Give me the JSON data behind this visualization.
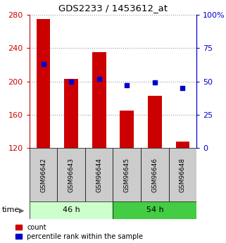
{
  "title": "GDS2233 / 1453612_at",
  "categories": [
    "GSM96642",
    "GSM96643",
    "GSM96644",
    "GSM96645",
    "GSM96646",
    "GSM96648"
  ],
  "count_values": [
    275,
    203,
    235,
    165,
    183,
    128
  ],
  "percentile_values": [
    63,
    50,
    52,
    47,
    49,
    45
  ],
  "ymin": 120,
  "ymax": 280,
  "y2min": 0,
  "y2max": 100,
  "yticks": [
    120,
    160,
    200,
    240,
    280
  ],
  "y2ticks": [
    0,
    25,
    50,
    75,
    100
  ],
  "bar_color": "#cc0000",
  "dot_color": "#0000cc",
  "bar_width": 0.5,
  "baseline": 120,
  "groups": [
    {
      "label": "46 h",
      "indices": [
        0,
        1,
        2
      ],
      "color_light": "#ccffcc",
      "color_dark": "#66dd66"
    },
    {
      "label": "54 h",
      "indices": [
        3,
        4,
        5
      ],
      "color_light": "#66ee66",
      "color_dark": "#22cc22"
    }
  ],
  "tick_label_color_left": "#cc0000",
  "tick_label_color_right": "#0000cc",
  "legend_items": [
    "count",
    "percentile rank within the sample"
  ],
  "grid_color": "#999999",
  "sample_box_color": "#cccccc"
}
